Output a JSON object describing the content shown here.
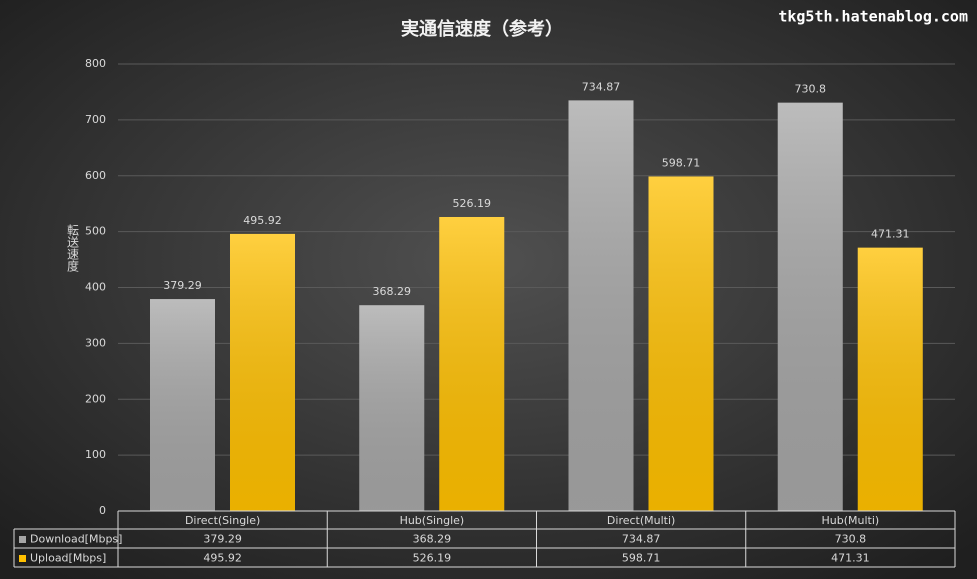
{
  "chart_data": {
    "type": "bar",
    "title": "実通信速度（参考）",
    "watermark": "tkg5th.hatenablog.com",
    "y_label": "転送速度",
    "categories": [
      "Direct(Single)",
      "Hub(Single)",
      "Direct(Multi)",
      "Hub(Multi)"
    ],
    "series": [
      {
        "name": "Download[Mbps]",
        "color": "#a6a6a6",
        "values": [
          379.29,
          368.29,
          734.87,
          730.8
        ]
      },
      {
        "name": "Upload[Mbps]",
        "color": "#ffc000",
        "values": [
          495.92,
          526.19,
          598.71,
          471.31
        ]
      }
    ],
    "ylim": [
      0,
      800
    ],
    "yticks": [
      0,
      100,
      200,
      300,
      400,
      500,
      600,
      700,
      800
    ],
    "grid": true,
    "data_table": true
  }
}
